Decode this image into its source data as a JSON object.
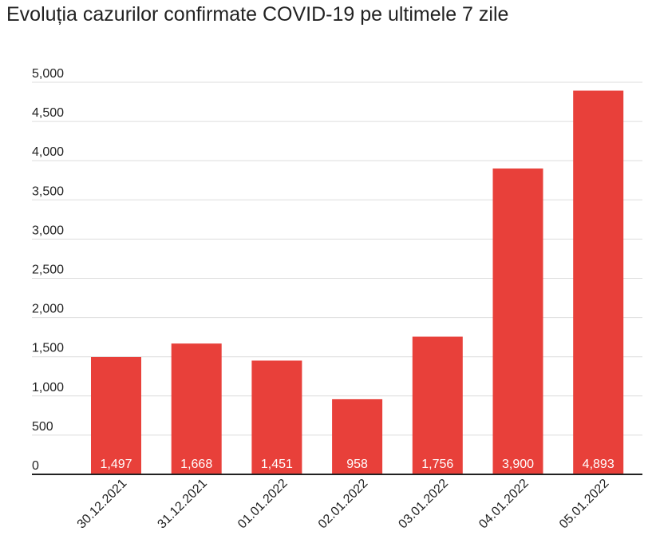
{
  "chart_data": {
    "type": "bar",
    "title": "Evoluția cazurilor confirmate COVID-19 pe ultimele 7 zile",
    "xlabel": "",
    "ylabel": "",
    "categories": [
      "30.12.2021",
      "31.12.2021",
      "01.01.2022",
      "02.01.2022",
      "03.01.2022",
      "04.01.2022",
      "05.01.2022"
    ],
    "values": [
      1497,
      1668,
      1451,
      958,
      1756,
      3900,
      4893
    ],
    "value_labels": [
      "1,497",
      "1,668",
      "1,451",
      "958",
      "1,756",
      "3,900",
      "4,893"
    ],
    "ylim": [
      0,
      5000
    ],
    "yticks": [
      0,
      500,
      1000,
      1500,
      2000,
      2500,
      3000,
      3500,
      4000,
      4500,
      5000
    ],
    "ytick_labels": [
      "0",
      "500",
      "1,000",
      "1,500",
      "2,000",
      "2,500",
      "3,000",
      "3,500",
      "4,000",
      "4,500",
      "5,000"
    ],
    "grid": true,
    "legend": "none",
    "bar_color": "#e8403a",
    "grid_color": "#dddddd",
    "axis_color": "#222222"
  }
}
